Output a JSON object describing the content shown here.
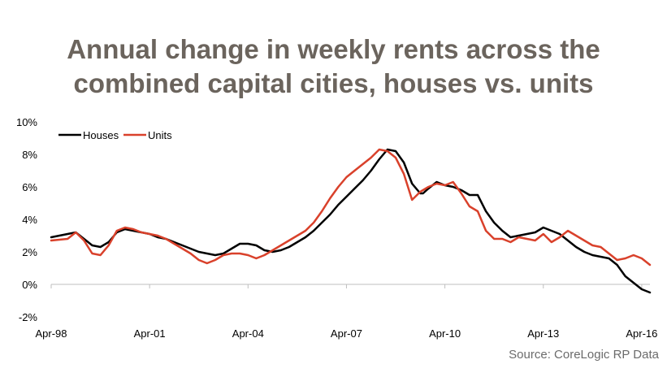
{
  "title_line1": "Annual change in weekly rents across the",
  "title_line2": "combined capital cities, houses vs. units",
  "source": "Source: CoreLogic RP Data",
  "colors": {
    "houses": "#000000",
    "units": "#d9412b",
    "title": "#6b645d",
    "axis": "#bfbfbf"
  },
  "chart_data": {
    "type": "line",
    "title": "Annual change in weekly rents across the combined capital cities, houses vs. units",
    "xlabel": "",
    "ylabel": "",
    "x_range": [
      "1998-04",
      "2016-07"
    ],
    "ylim": [
      -2,
      10
    ],
    "yticks": [
      -2,
      0,
      2,
      4,
      6,
      8,
      10
    ],
    "ytick_labels": [
      "-2%",
      "0%",
      "2%",
      "4%",
      "6%",
      "8%",
      "10%"
    ],
    "xticks": [
      "1998-04",
      "2001-04",
      "2004-04",
      "2007-04",
      "2010-04",
      "2013-04",
      "2016-04"
    ],
    "xtick_labels": [
      "Apr-98",
      "Apr-01",
      "Apr-04",
      "Apr-07",
      "Apr-10",
      "Apr-13",
      "Apr-16"
    ],
    "grid": false,
    "legend": "top-left",
    "series": [
      {
        "name": "Houses",
        "x": [
          "1998-04",
          "1998-10",
          "1999-01",
          "1999-04",
          "1999-07",
          "1999-10",
          "2000-01",
          "2000-04",
          "2000-07",
          "2000-10",
          "2001-01",
          "2001-04",
          "2001-07",
          "2001-10",
          "2002-01",
          "2002-04",
          "2002-07",
          "2002-10",
          "2003-01",
          "2003-04",
          "2003-07",
          "2003-10",
          "2004-01",
          "2004-04",
          "2004-07",
          "2004-10",
          "2005-01",
          "2005-04",
          "2005-07",
          "2005-10",
          "2006-01",
          "2006-04",
          "2006-07",
          "2006-10",
          "2007-01",
          "2007-04",
          "2007-07",
          "2007-10",
          "2008-01",
          "2008-04",
          "2008-07",
          "2008-10",
          "2009-01",
          "2009-04",
          "2009-07",
          "2009-08",
          "2009-10",
          "2010-01",
          "2010-04",
          "2010-07",
          "2010-10",
          "2011-01",
          "2011-04",
          "2011-07",
          "2011-10",
          "2012-01",
          "2012-04",
          "2012-07",
          "2012-10",
          "2013-01",
          "2013-04",
          "2013-07",
          "2013-10",
          "2014-01",
          "2014-04",
          "2014-07",
          "2014-10",
          "2015-01",
          "2015-04",
          "2015-07",
          "2015-10",
          "2016-01",
          "2016-04",
          "2016-07"
        ],
        "values": [
          2.9,
          3.1,
          3.2,
          2.8,
          2.4,
          2.3,
          2.6,
          3.2,
          3.4,
          3.3,
          3.2,
          3.1,
          2.9,
          2.8,
          2.6,
          2.4,
          2.2,
          2.0,
          1.9,
          1.8,
          1.9,
          2.2,
          2.5,
          2.5,
          2.4,
          2.1,
          2.0,
          2.1,
          2.3,
          2.6,
          2.9,
          3.3,
          3.8,
          4.3,
          4.9,
          5.4,
          5.9,
          6.4,
          7.0,
          7.7,
          8.3,
          8.2,
          7.5,
          6.2,
          5.6,
          5.6,
          5.9,
          6.3,
          6.1,
          6.0,
          5.8,
          5.5,
          5.5,
          4.5,
          3.8,
          3.3,
          2.9,
          3.0,
          3.1,
          3.2,
          3.5,
          3.3,
          3.1,
          2.7,
          2.3,
          2.0,
          1.8,
          1.7,
          1.6,
          1.2,
          0.5,
          0.1,
          -0.3,
          -0.5
        ]
      },
      {
        "name": "Units",
        "x": [
          "1998-04",
          "1998-10",
          "1999-01",
          "1999-04",
          "1999-07",
          "1999-10",
          "2000-01",
          "2000-04",
          "2000-07",
          "2000-10",
          "2001-01",
          "2001-04",
          "2001-07",
          "2001-10",
          "2002-01",
          "2002-04",
          "2002-07",
          "2002-10",
          "2003-01",
          "2003-04",
          "2003-07",
          "2003-10",
          "2004-01",
          "2004-04",
          "2004-07",
          "2004-10",
          "2005-01",
          "2005-04",
          "2005-07",
          "2005-10",
          "2006-01",
          "2006-04",
          "2006-07",
          "2006-10",
          "2007-01",
          "2007-04",
          "2007-07",
          "2007-10",
          "2008-01",
          "2008-04",
          "2008-07",
          "2008-10",
          "2009-01",
          "2009-04",
          "2009-07",
          "2009-10",
          "2010-01",
          "2010-04",
          "2010-07",
          "2010-10",
          "2011-01",
          "2011-04",
          "2011-07",
          "2011-10",
          "2012-01",
          "2012-04",
          "2012-07",
          "2012-10",
          "2013-01",
          "2013-04",
          "2013-07",
          "2013-10",
          "2014-01",
          "2014-04",
          "2014-07",
          "2014-10",
          "2015-01",
          "2015-04",
          "2015-07",
          "2015-10",
          "2016-01",
          "2016-04",
          "2016-07"
        ],
        "values": [
          2.7,
          2.8,
          3.2,
          2.7,
          1.9,
          1.8,
          2.4,
          3.3,
          3.5,
          3.4,
          3.2,
          3.1,
          3.0,
          2.8,
          2.5,
          2.2,
          1.9,
          1.5,
          1.3,
          1.5,
          1.8,
          1.9,
          1.9,
          1.8,
          1.6,
          1.8,
          2.1,
          2.4,
          2.7,
          3.0,
          3.3,
          3.8,
          4.5,
          5.3,
          6.0,
          6.6,
          7.0,
          7.4,
          7.8,
          8.3,
          8.2,
          7.8,
          6.8,
          5.2,
          5.7,
          6.0,
          6.2,
          6.1,
          6.3,
          5.6,
          4.8,
          4.5,
          3.3,
          2.8,
          2.8,
          2.6,
          2.9,
          2.8,
          2.7,
          3.1,
          2.6,
          2.9,
          3.3,
          3.0,
          2.7,
          2.4,
          2.3,
          1.9,
          1.5,
          1.6,
          1.8,
          1.6,
          1.2
        ]
      }
    ]
  }
}
